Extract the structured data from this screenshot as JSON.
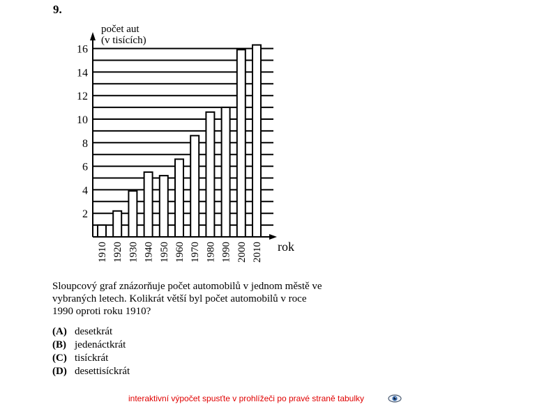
{
  "problem_number": "9.",
  "chart_data": {
    "type": "bar",
    "ylabel_line1": "počet aut",
    "ylabel_line2": "(v tisících)",
    "xlabel": "rok",
    "categories": [
      "1910",
      "1920",
      "1930",
      "1940",
      "1950",
      "1960",
      "1970",
      "1980",
      "1990",
      "2000",
      "2010"
    ],
    "values": [
      1,
      2.2,
      3.9,
      5.5,
      5.2,
      6.6,
      8.6,
      10.6,
      11,
      15.9,
      16.3
    ],
    "yticks": [
      "2",
      "4",
      "6",
      "8",
      "10",
      "12",
      "14",
      "16"
    ],
    "ylim": [
      0,
      16.6
    ],
    "grid": true
  },
  "question": {
    "text": "Sloupcový graf znázorňuje počet automobilů v jednom městě ve vybraných letech. Kolikrát větší byl počet automobilů v roce 1990 oproti roku 1910?"
  },
  "options": [
    {
      "letter": "(A)",
      "text": "desetkrát"
    },
    {
      "letter": "(B)",
      "text": "jedenáctkrát"
    },
    {
      "letter": "(C)",
      "text": "tisíckrát"
    },
    {
      "letter": "(D)",
      "text": "desettisíckrát"
    }
  ],
  "interactive_link": "interaktivní výpočet spusťte v prohlížeči po pravé straně tabulky",
  "eye_icon": "eye-icon"
}
